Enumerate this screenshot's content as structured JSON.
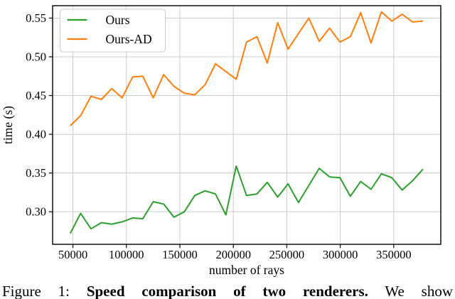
{
  "figure": {
    "caption": {
      "prefix": "Figure 1: ",
      "bold": "Speed comparison of two renderers.",
      "rest": " We show"
    }
  },
  "chart_data": {
    "type": "line",
    "title": "",
    "xlabel": "number of rays",
    "ylabel": "time (s)",
    "grid": true,
    "legend_position": "upper left",
    "xlim": [
      31000,
      394000
    ],
    "ylim": [
      0.258,
      0.566
    ],
    "xticks": [
      {
        "v": 50000,
        "label": "50000"
      },
      {
        "v": 100000,
        "label": "100000"
      },
      {
        "v": 150000,
        "label": "150000"
      },
      {
        "v": 200000,
        "label": "200000"
      },
      {
        "v": 250000,
        "label": "250000"
      },
      {
        "v": 300000,
        "label": "300000"
      },
      {
        "v": 350000,
        "label": "350000"
      }
    ],
    "yticks": [
      {
        "v": 0.3,
        "label": "0.30"
      },
      {
        "v": 0.35,
        "label": "0.35"
      },
      {
        "v": 0.4,
        "label": "0.40"
      },
      {
        "v": 0.45,
        "label": "0.45"
      },
      {
        "v": 0.5,
        "label": "0.50"
      },
      {
        "v": 0.55,
        "label": "0.55"
      }
    ],
    "x": [
      47500,
      57200,
      66900,
      76600,
      86300,
      96000,
      105700,
      115400,
      125100,
      134800,
      144500,
      154200,
      163900,
      173600,
      183300,
      193000,
      202700,
      212400,
      222100,
      231800,
      241500,
      251200,
      260900,
      270600,
      280300,
      290000,
      299700,
      309400,
      319100,
      328800,
      338500,
      348200,
      357900,
      367600,
      377300
    ],
    "series": [
      {
        "name": "Ours",
        "color": "#2ca02c",
        "values": [
          0.272,
          0.298,
          0.278,
          0.286,
          0.284,
          0.287,
          0.292,
          0.291,
          0.313,
          0.31,
          0.293,
          0.3,
          0.321,
          0.327,
          0.323,
          0.296,
          0.359,
          0.321,
          0.323,
          0.338,
          0.319,
          0.336,
          0.312,
          0.334,
          0.356,
          0.345,
          0.344,
          0.32,
          0.339,
          0.329,
          0.349,
          0.344,
          0.328,
          0.34,
          0.355
        ]
      },
      {
        "name": "Ours-AD",
        "color": "#ff7f0e",
        "values": [
          0.411,
          0.424,
          0.449,
          0.445,
          0.459,
          0.447,
          0.474,
          0.475,
          0.447,
          0.477,
          0.462,
          0.453,
          0.451,
          0.464,
          0.491,
          0.481,
          0.471,
          0.519,
          0.526,
          0.492,
          0.544,
          0.51,
          0.53,
          0.55,
          0.52,
          0.537,
          0.519,
          0.526,
          0.557,
          0.518,
          0.558,
          0.546,
          0.555,
          0.545,
          0.546
        ]
      }
    ],
    "grid_color": "#cccccc",
    "spine_color": "#000000"
  }
}
